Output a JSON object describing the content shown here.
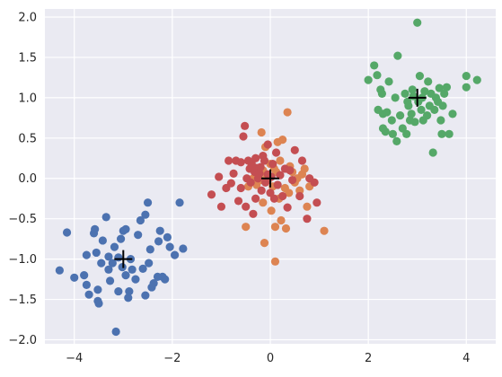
{
  "chart_data": {
    "type": "scatter",
    "title": "",
    "xlabel": "",
    "ylabel": "",
    "xlim": [
      -4.6,
      4.6
    ],
    "ylim": [
      -2.05,
      2.1
    ],
    "xticks": [
      -4,
      -2,
      0,
      2,
      4
    ],
    "yticks": [
      -2.0,
      -1.5,
      -1.0,
      -0.5,
      0.0,
      0.5,
      1.0,
      1.5,
      2.0
    ],
    "xtick_labels": [
      "−4",
      "−2",
      "0",
      "2",
      "4"
    ],
    "ytick_labels": [
      "−2.0",
      "−1.5",
      "−1.0",
      "−0.5",
      "0.0",
      "0.5",
      "1.0",
      "1.5",
      "2.0"
    ],
    "grid": true,
    "background": "#EAEAF2",
    "series": [
      {
        "color": "#4C72B0",
        "points": [
          [
            -4.3,
            -1.14
          ],
          [
            -4.15,
            -0.67
          ],
          [
            -4.0,
            -1.23
          ],
          [
            -3.8,
            -1.2
          ],
          [
            -3.75,
            -1.32
          ],
          [
            -3.75,
            -0.95
          ],
          [
            -3.7,
            -1.44
          ],
          [
            -3.6,
            -0.68
          ],
          [
            -3.58,
            -0.63
          ],
          [
            -3.55,
            -0.92
          ],
          [
            -3.52,
            -1.52
          ],
          [
            -3.52,
            -1.38
          ],
          [
            -3.5,
            -1.55
          ],
          [
            -3.45,
            -1.05
          ],
          [
            -3.42,
            -0.77
          ],
          [
            -3.35,
            -0.48
          ],
          [
            -3.3,
            -0.97
          ],
          [
            -3.3,
            -1.13
          ],
          [
            -3.27,
            -1.27
          ],
          [
            -3.22,
            -1.05
          ],
          [
            -3.18,
            -0.85
          ],
          [
            -3.15,
            -1.9
          ],
          [
            -3.1,
            -0.98
          ],
          [
            -3.1,
            -1.4
          ],
          [
            -3.05,
            -0.75
          ],
          [
            -3.02,
            -1.1
          ],
          [
            -3.0,
            -0.65
          ],
          [
            -2.95,
            -0.63
          ],
          [
            -2.95,
            -1.2
          ],
          [
            -2.9,
            -1.48
          ],
          [
            -2.88,
            -1.4
          ],
          [
            -2.85,
            -1.0
          ],
          [
            -2.82,
            -1.13
          ],
          [
            -2.75,
            -1.25
          ],
          [
            -2.7,
            -0.7
          ],
          [
            -2.65,
            -0.52
          ],
          [
            -2.6,
            -1.12
          ],
          [
            -2.55,
            -0.45
          ],
          [
            -2.55,
            -1.45
          ],
          [
            -2.5,
            -0.3
          ],
          [
            -2.48,
            -1.05
          ],
          [
            -2.45,
            -0.88
          ],
          [
            -2.42,
            -1.35
          ],
          [
            -2.38,
            -1.3
          ],
          [
            -2.3,
            -1.22
          ],
          [
            -2.28,
            -0.78
          ],
          [
            -2.25,
            -0.65
          ],
          [
            -2.2,
            -1.22
          ],
          [
            -2.15,
            -1.25
          ],
          [
            -2.1,
            -0.73
          ],
          [
            -2.05,
            -0.85
          ],
          [
            -1.95,
            -0.95
          ],
          [
            -1.85,
            -0.3
          ],
          [
            -1.78,
            -0.87
          ]
        ]
      },
      {
        "color": "#DD8452",
        "points": [
          [
            -0.5,
            -0.6
          ],
          [
            -0.45,
            -0.1
          ],
          [
            -0.35,
            0.0
          ],
          [
            -0.3,
            0.05
          ],
          [
            -0.28,
            -0.08
          ],
          [
            -0.25,
            0.12
          ],
          [
            -0.2,
            -0.02
          ],
          [
            -0.18,
            0.57
          ],
          [
            -0.15,
            -0.3
          ],
          [
            -0.15,
            0.1
          ],
          [
            -0.12,
            -0.8
          ],
          [
            -0.1,
            0.39
          ],
          [
            -0.08,
            0.05
          ],
          [
            -0.05,
            -0.02
          ],
          [
            0.0,
            0.18
          ],
          [
            0.02,
            -0.4
          ],
          [
            0.05,
            -0.1
          ],
          [
            0.08,
            0.12
          ],
          [
            0.1,
            -1.03
          ],
          [
            0.1,
            -0.6
          ],
          [
            0.12,
            0.08
          ],
          [
            0.15,
            0.45
          ],
          [
            0.18,
            -0.25
          ],
          [
            0.2,
            0.22
          ],
          [
            0.22,
            -0.52
          ],
          [
            0.25,
            0.48
          ],
          [
            0.3,
            -0.12
          ],
          [
            0.32,
            -0.62
          ],
          [
            0.35,
            0.82
          ],
          [
            0.38,
            -0.18
          ],
          [
            0.4,
            0.15
          ],
          [
            0.45,
            0.08
          ],
          [
            0.5,
            -0.05
          ],
          [
            0.55,
            0.0
          ],
          [
            0.6,
            -0.15
          ],
          [
            0.65,
            0.05
          ],
          [
            0.7,
            0.12
          ],
          [
            0.75,
            -0.35
          ],
          [
            0.8,
            -0.1
          ],
          [
            1.1,
            -0.65
          ]
        ]
      },
      {
        "color": "#55A868",
        "points": [
          [
            2.0,
            1.22
          ],
          [
            2.12,
            1.4
          ],
          [
            2.18,
            1.28
          ],
          [
            2.2,
            0.85
          ],
          [
            2.25,
            1.1
          ],
          [
            2.28,
            1.05
          ],
          [
            2.3,
            0.62
          ],
          [
            2.3,
            0.8
          ],
          [
            2.35,
            0.58
          ],
          [
            2.38,
            0.82
          ],
          [
            2.42,
            1.2
          ],
          [
            2.48,
            0.72
          ],
          [
            2.5,
            0.55
          ],
          [
            2.55,
            1.0
          ],
          [
            2.58,
            0.46
          ],
          [
            2.6,
            1.52
          ],
          [
            2.65,
            0.78
          ],
          [
            2.7,
            0.62
          ],
          [
            2.75,
            1.05
          ],
          [
            2.78,
            0.55
          ],
          [
            2.8,
            0.95
          ],
          [
            2.82,
            0.9
          ],
          [
            2.85,
            0.72
          ],
          [
            2.88,
            0.8
          ],
          [
            2.9,
            1.1
          ],
          [
            2.92,
            1.02
          ],
          [
            2.95,
            0.7
          ],
          [
            3.0,
            1.93
          ],
          [
            3.02,
            0.95
          ],
          [
            3.05,
            1.27
          ],
          [
            3.08,
            0.85
          ],
          [
            3.1,
            1.0
          ],
          [
            3.12,
            0.72
          ],
          [
            3.15,
            1.08
          ],
          [
            3.2,
            0.78
          ],
          [
            3.22,
            1.2
          ],
          [
            3.25,
            0.9
          ],
          [
            3.28,
            1.05
          ],
          [
            3.32,
            0.32
          ],
          [
            3.35,
            0.85
          ],
          [
            3.38,
            1.0
          ],
          [
            3.42,
            0.95
          ],
          [
            3.45,
            1.12
          ],
          [
            3.48,
            0.72
          ],
          [
            3.5,
            0.55
          ],
          [
            3.52,
            0.9
          ],
          [
            3.55,
            1.05
          ],
          [
            3.6,
            1.13
          ],
          [
            3.65,
            0.55
          ],
          [
            3.72,
            0.8
          ],
          [
            4.0,
            1.27
          ],
          [
            4.0,
            1.13
          ],
          [
            4.22,
            1.22
          ]
        ]
      },
      {
        "color": "#C44E52",
        "points": [
          [
            -1.2,
            -0.2
          ],
          [
            -1.05,
            0.02
          ],
          [
            -1.0,
            -0.35
          ],
          [
            -0.9,
            -0.12
          ],
          [
            -0.85,
            0.22
          ],
          [
            -0.8,
            -0.06
          ],
          [
            -0.75,
            0.06
          ],
          [
            -0.7,
            0.22
          ],
          [
            -0.65,
            -0.28
          ],
          [
            -0.6,
            -0.12
          ],
          [
            -0.6,
            0.2
          ],
          [
            -0.55,
            0.52
          ],
          [
            -0.52,
            0.65
          ],
          [
            -0.5,
            -0.35
          ],
          [
            -0.48,
            0.0
          ],
          [
            -0.45,
            0.22
          ],
          [
            -0.42,
            0.12
          ],
          [
            -0.4,
            -0.05
          ],
          [
            -0.38,
            0.18
          ],
          [
            -0.35,
            -0.44
          ],
          [
            -0.32,
            0.08
          ],
          [
            -0.3,
            0.25
          ],
          [
            -0.28,
            0.13
          ],
          [
            -0.25,
            0.0
          ],
          [
            -0.22,
            0.06
          ],
          [
            -0.2,
            0.14
          ],
          [
            -0.18,
            -0.15
          ],
          [
            -0.15,
            0.28
          ],
          [
            -0.12,
            0.22
          ],
          [
            -0.1,
            -0.05
          ],
          [
            -0.05,
            0.05
          ],
          [
            0.0,
            -0.18
          ],
          [
            0.05,
            0.18
          ],
          [
            0.08,
            -0.25
          ],
          [
            0.12,
            0.32
          ],
          [
            0.15,
            -0.08
          ],
          [
            0.2,
            0.04
          ],
          [
            0.25,
            -0.22
          ],
          [
            0.3,
            0.12
          ],
          [
            0.35,
            -0.36
          ],
          [
            0.4,
            0.1
          ],
          [
            0.45,
            -0.02
          ],
          [
            0.5,
            0.35
          ],
          [
            0.6,
            -0.22
          ],
          [
            0.65,
            0.22
          ],
          [
            0.75,
            -0.5
          ],
          [
            0.8,
            0.0
          ],
          [
            0.9,
            -0.05
          ],
          [
            0.95,
            -0.3
          ],
          [
            -0.05,
            0.42
          ],
          [
            -0.3,
            -0.25
          ],
          [
            0.02,
            0.02
          ]
        ]
      }
    ],
    "centers": {
      "color": "#000000",
      "marker": "+",
      "points": [
        [
          -3.0,
          -1.0
        ],
        [
          3.0,
          1.0
        ],
        [
          0.0,
          0.0
        ]
      ]
    }
  }
}
